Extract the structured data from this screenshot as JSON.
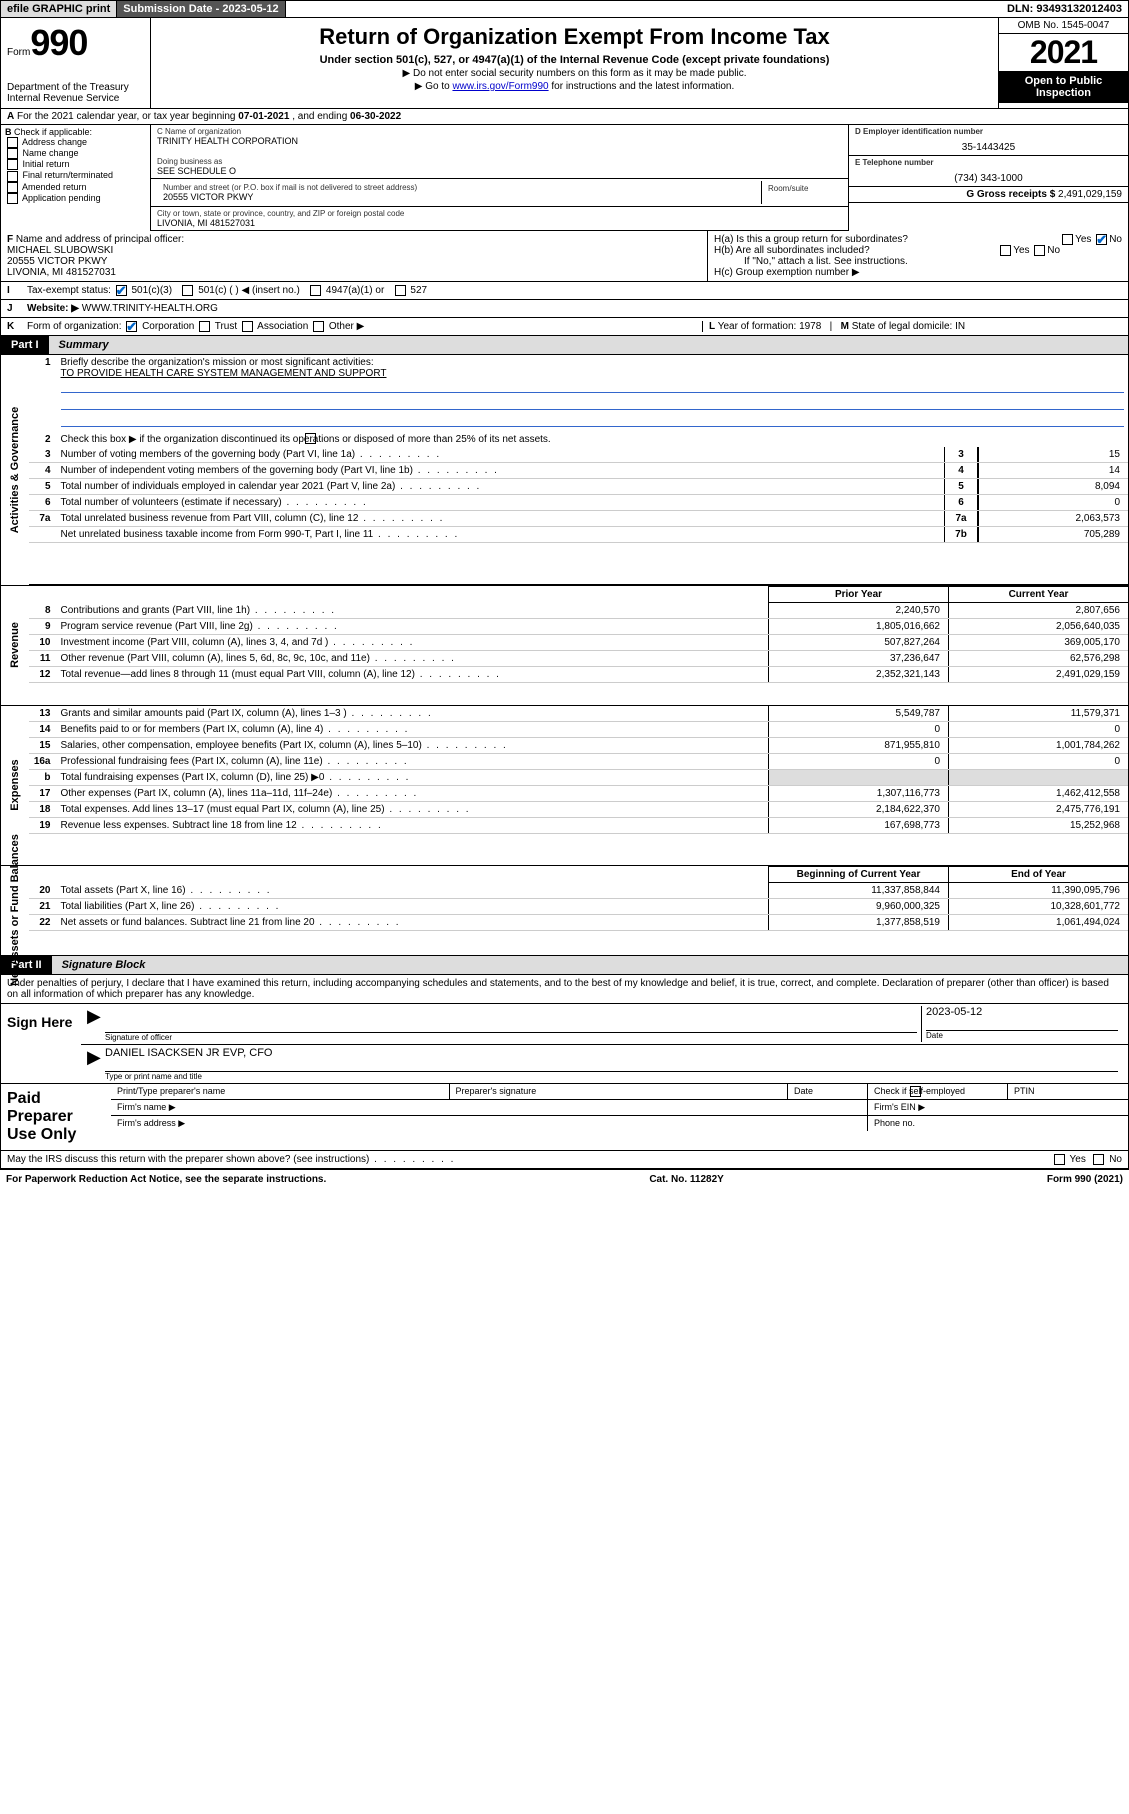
{
  "topbar": {
    "efile": "efile GRAPHIC print",
    "submission_label": "Submission Date - ",
    "submission_date": "2023-05-12",
    "dln_label": "DLN: ",
    "dln": "93493132012403"
  },
  "header": {
    "form_prefix": "Form",
    "form_num": "990",
    "dept": "Department of the Treasury\nInternal Revenue Service",
    "title": "Return of Organization Exempt From Income Tax",
    "sub": "Under section 501(c), 527, or 4947(a)(1) of the Internal Revenue Code (except private foundations)",
    "note1": "▶ Do not enter social security numbers on this form as it may be made public.",
    "note2_pre": "▶ Go to ",
    "note2_link": "www.irs.gov/Form990",
    "note2_post": " for instructions and the latest information.",
    "omb": "OMB No. 1545-0047",
    "year": "2021",
    "open": "Open to Public Inspection"
  },
  "row_a": {
    "label": "A",
    "text_pre": "For the 2021 calendar year, or tax year beginning ",
    "begin": "07-01-2021",
    "mid": " , and ending ",
    "end": "06-30-2022"
  },
  "col_b": {
    "label": "B",
    "heading": "Check if applicable:",
    "items": [
      "Address change",
      "Name change",
      "Initial return",
      "Final return/terminated",
      "Amended return",
      "Application pending"
    ]
  },
  "col_c": {
    "name_label": "C Name of organization",
    "name": "TRINITY HEALTH CORPORATION",
    "dba_label": "Doing business as",
    "dba": "SEE SCHEDULE O",
    "addr_label": "Number and street (or P.O. box if mail is not delivered to street address)",
    "room_label": "Room/suite",
    "addr": "20555 VICTOR PKWY",
    "city_label": "City or town, state or province, country, and ZIP or foreign postal code",
    "city": "LIVONIA, MI  481527031"
  },
  "col_d": {
    "ein_label": "D Employer identification number",
    "ein": "35-1443425",
    "tel_label": "E Telephone number",
    "tel": "(734) 343-1000",
    "gross_label": "G Gross receipts $ ",
    "gross": "2,491,029,159"
  },
  "row_f": {
    "label": "F",
    "heading": "Name and address of principal officer:",
    "name": "MICHAEL SLUBOWSKI",
    "addr1": "20555 VICTOR PKWY",
    "addr2": "LIVONIA, MI  481527031"
  },
  "row_h": {
    "ha": "H(a)  Is this a group return for subordinates?",
    "hb": "H(b)  Are all subordinates included?",
    "hb_note": "If \"No,\" attach a list. See instructions.",
    "hc": "H(c)  Group exemption number ▶",
    "yes": "Yes",
    "no": "No"
  },
  "row_i": {
    "label": "I",
    "heading": "Tax-exempt status:",
    "opts": [
      "501(c)(3)",
      "501(c) (  ) ◀ (insert no.)",
      "4947(a)(1) or",
      "527"
    ]
  },
  "row_j": {
    "label": "J",
    "heading": "Website: ▶",
    "url": "WWW.TRINITY-HEALTH.ORG"
  },
  "row_k": {
    "label": "K",
    "heading": "Form of organization:",
    "opts": [
      "Corporation",
      "Trust",
      "Association",
      "Other ▶"
    ],
    "l_label": "L",
    "l_text": "Year of formation: ",
    "l_val": "1978",
    "m_label": "M",
    "m_text": "State of legal domicile: ",
    "m_val": "IN"
  },
  "part1": {
    "hdr": "Part I",
    "title": "Summary",
    "q1": "Briefly describe the organization's mission or most significant activities:",
    "q1_ans": "TO PROVIDE HEALTH CARE SYSTEM MANAGEMENT AND SUPPORT",
    "q2": "Check this box ▶        if the organization discontinued its operations or disposed of more than 25% of its net assets.",
    "summary_lines": [
      {
        "n": "3",
        "t": "Number of voting members of the governing body (Part VI, line 1a)",
        "box": "3",
        "v": "15"
      },
      {
        "n": "4",
        "t": "Number of independent voting members of the governing body (Part VI, line 1b)",
        "box": "4",
        "v": "14"
      },
      {
        "n": "5",
        "t": "Total number of individuals employed in calendar year 2021 (Part V, line 2a)",
        "box": "5",
        "v": "8,094"
      },
      {
        "n": "6",
        "t": "Total number of volunteers (estimate if necessary)",
        "box": "6",
        "v": "0"
      },
      {
        "n": "7a",
        "t": "Total unrelated business revenue from Part VIII, column (C), line 12",
        "box": "7a",
        "v": "2,063,573"
      },
      {
        "n": "",
        "t": "Net unrelated business taxable income from Form 990-T, Part I, line 11",
        "box": "7b",
        "v": "705,289"
      }
    ],
    "two_hdr": {
      "prior": "Prior Year",
      "current": "Current Year"
    },
    "revenue": [
      {
        "n": "8",
        "t": "Contributions and grants (Part VIII, line 1h)",
        "p": "2,240,570",
        "c": "2,807,656"
      },
      {
        "n": "9",
        "t": "Program service revenue (Part VIII, line 2g)",
        "p": "1,805,016,662",
        "c": "2,056,640,035"
      },
      {
        "n": "10",
        "t": "Investment income (Part VIII, column (A), lines 3, 4, and 7d )",
        "p": "507,827,264",
        "c": "369,005,170"
      },
      {
        "n": "11",
        "t": "Other revenue (Part VIII, column (A), lines 5, 6d, 8c, 9c, 10c, and 11e)",
        "p": "37,236,647",
        "c": "62,576,298"
      },
      {
        "n": "12",
        "t": "Total revenue—add lines 8 through 11 (must equal Part VIII, column (A), line 12)",
        "p": "2,352,321,143",
        "c": "2,491,029,159"
      }
    ],
    "expenses": [
      {
        "n": "13",
        "t": "Grants and similar amounts paid (Part IX, column (A), lines 1–3 )",
        "p": "5,549,787",
        "c": "11,579,371"
      },
      {
        "n": "14",
        "t": "Benefits paid to or for members (Part IX, column (A), line 4)",
        "p": "0",
        "c": "0"
      },
      {
        "n": "15",
        "t": "Salaries, other compensation, employee benefits (Part IX, column (A), lines 5–10)",
        "p": "871,955,810",
        "c": "1,001,784,262"
      },
      {
        "n": "16a",
        "t": "Professional fundraising fees (Part IX, column (A), line 11e)",
        "p": "0",
        "c": "0"
      },
      {
        "n": "b",
        "t": "Total fundraising expenses (Part IX, column (D), line 25) ▶0",
        "p": "",
        "c": "",
        "grey": true
      },
      {
        "n": "17",
        "t": "Other expenses (Part IX, column (A), lines 11a–11d, 11f–24e)",
        "p": "1,307,116,773",
        "c": "1,462,412,558"
      },
      {
        "n": "18",
        "t": "Total expenses. Add lines 13–17 (must equal Part IX, column (A), line 25)",
        "p": "2,184,622,370",
        "c": "2,475,776,191"
      },
      {
        "n": "19",
        "t": "Revenue less expenses. Subtract line 18 from line 12",
        "p": "167,698,773",
        "c": "15,252,968"
      }
    ],
    "net_hdr": {
      "begin": "Beginning of Current Year",
      "end": "End of Year"
    },
    "net": [
      {
        "n": "20",
        "t": "Total assets (Part X, line 16)",
        "p": "11,337,858,844",
        "c": "11,390,095,796"
      },
      {
        "n": "21",
        "t": "Total liabilities (Part X, line 26)",
        "p": "9,960,000,325",
        "c": "10,328,601,772"
      },
      {
        "n": "22",
        "t": "Net assets or fund balances. Subtract line 21 from line 20",
        "p": "1,377,858,519",
        "c": "1,061,494,024"
      }
    ]
  },
  "part2": {
    "hdr": "Part II",
    "title": "Signature Block",
    "decl": "Under penalties of perjury, I declare that I have examined this return, including accompanying schedules and statements, and to the best of my knowledge and belief, it is true, correct, and complete. Declaration of preparer (other than officer) is based on all information of which preparer has any knowledge.",
    "sign_here": "Sign Here",
    "sig_officer": "Signature of officer",
    "date": "Date",
    "sig_date": "2023-05-12",
    "officer_name": "DANIEL ISACKSEN JR  EVP, CFO",
    "name_title": "Type or print name and title",
    "paid": "Paid Preparer Use Only",
    "prep_name": "Print/Type preparer's name",
    "prep_sig": "Preparer's signature",
    "check_if": "Check          if self-employed",
    "ptin": "PTIN",
    "firm_name": "Firm's name    ▶",
    "firm_ein": "Firm's EIN ▶",
    "firm_addr": "Firm's address ▶",
    "phone": "Phone no.",
    "discuss": "May the IRS discuss this return with the preparer shown above? (see instructions)"
  },
  "footer": {
    "left": "For Paperwork Reduction Act Notice, see the separate instructions.",
    "mid": "Cat. No. 11282Y",
    "right": "Form 990 (2021)"
  },
  "sidebars": {
    "ag": "Activities & Governance",
    "rev": "Revenue",
    "exp": "Expenses",
    "net": "Net Assets or Fund Balances"
  },
  "colors": {
    "link": "#0000cc",
    "check": "#0066cc",
    "grey": "#dddddd"
  }
}
